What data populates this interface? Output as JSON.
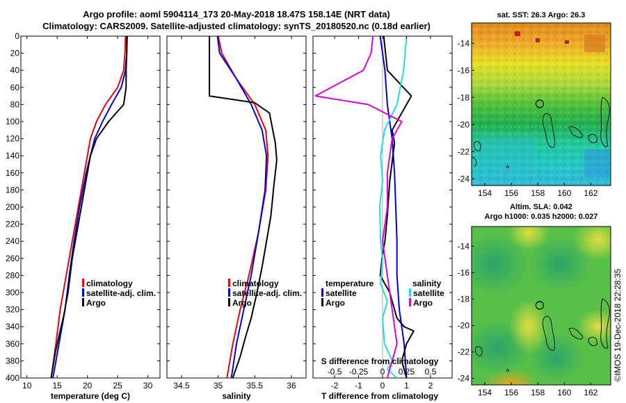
{
  "header": {
    "line1": "Argo profile: aoml 5904114_173 20-May-2018 18.47S 158.14E (NRT data)",
    "line2": "Climatology: CARS2009. Satellite-adjusted climatology: synTS_20180520.nc (0.18d earlier)"
  },
  "credit": "©IMOS 19-Dec-2018 22:28:35",
  "colors": {
    "climatology": "#ee0000",
    "satellite": "#0000dd",
    "argo": "#000000",
    "salinity_diff": "#dd00dd",
    "salinity_sat": "#22dddd"
  },
  "legends": {
    "profile": [
      "climatology",
      "satellite-adj. clim.",
      "Argo"
    ],
    "diff_temperature_title": "temperature",
    "diff_temperature": [
      "satellite",
      "Argo"
    ],
    "diff_salinity_title": "salinity",
    "diff_salinity": [
      "satellite",
      "Argo"
    ]
  },
  "chart_data": [
    {
      "type": "line",
      "id": "temperature",
      "xlabel": "temperature (deg C)",
      "ylabel": "",
      "xlim": [
        9,
        32
      ],
      "ylim": [
        400,
        0
      ],
      "xticks": [
        "10",
        "15",
        "20",
        "25",
        "30"
      ],
      "xtick_values": [
        10,
        15,
        20,
        25,
        30
      ],
      "yticks": [
        "0",
        "20",
        "40",
        "60",
        "80",
        "100",
        "120",
        "140",
        "160",
        "180",
        "200",
        "220",
        "240",
        "260",
        "280",
        "300",
        "320",
        "340",
        "360",
        "380",
        "400"
      ],
      "ytick_values": [
        0,
        20,
        40,
        60,
        80,
        100,
        120,
        140,
        160,
        180,
        200,
        220,
        240,
        260,
        280,
        300,
        320,
        340,
        360,
        380,
        400
      ],
      "series": [
        {
          "name": "climatology",
          "color": "#ee0000",
          "x": [
            26.3,
            26.2,
            26.0,
            25.0,
            23.0,
            21.5,
            20.5,
            19.5,
            18.5,
            17.5,
            16.5,
            15.5,
            14.8,
            14.0
          ],
          "y": [
            0,
            20,
            40,
            60,
            80,
            100,
            120,
            160,
            200,
            240,
            280,
            320,
            360,
            400
          ]
        },
        {
          "name": "satellite-adj. clim.",
          "color": "#0000dd",
          "x": [
            26.6,
            26.5,
            26.3,
            25.6,
            24.0,
            22.5,
            21.2,
            19.8,
            18.7,
            17.8,
            17.0,
            16.3,
            15.3,
            14.3
          ],
          "y": [
            0,
            20,
            40,
            60,
            80,
            100,
            120,
            160,
            200,
            240,
            280,
            320,
            360,
            400
          ]
        },
        {
          "name": "Argo",
          "color": "#000000",
          "x": [
            26.5,
            26.5,
            26.4,
            26.4,
            26.0,
            23.5,
            21.5,
            20.5,
            19.5,
            18.5,
            17.5,
            16.8,
            16.0,
            15.5,
            14.7,
            14.0
          ],
          "y": [
            0,
            20,
            40,
            60,
            80,
            100,
            120,
            140,
            180,
            220,
            260,
            300,
            330,
            345,
            370,
            400
          ]
        }
      ]
    },
    {
      "type": "line",
      "id": "salinity",
      "xlabel": "salinity",
      "ylabel": "",
      "xlim": [
        34.3,
        36.2
      ],
      "ylim": [
        400,
        0
      ],
      "xticks": [
        "34.5",
        "35",
        "35.5",
        "36"
      ],
      "xtick_values": [
        34.5,
        35,
        35.5,
        36
      ],
      "series": [
        {
          "name": "climatology",
          "color": "#ee0000",
          "x": [
            35.0,
            35.05,
            35.25,
            35.5,
            35.65,
            35.68,
            35.65,
            35.55,
            35.42,
            35.3,
            35.2,
            35.12
          ],
          "y": [
            0,
            20,
            50,
            80,
            110,
            140,
            180,
            230,
            280,
            320,
            360,
            400
          ]
        },
        {
          "name": "satellite-adj. clim.",
          "color": "#0000dd",
          "x": [
            34.99,
            35.02,
            35.25,
            35.45,
            35.6,
            35.66,
            35.64,
            35.55,
            35.45,
            35.35,
            35.25,
            35.18
          ],
          "y": [
            0,
            20,
            50,
            80,
            110,
            140,
            180,
            230,
            280,
            320,
            360,
            400
          ]
        },
        {
          "name": "Argo",
          "color": "#000000",
          "x": [
            34.88,
            34.88,
            34.88,
            35.5,
            35.7,
            35.78,
            35.8,
            35.76,
            35.72,
            35.66,
            35.6,
            35.53,
            35.45,
            35.38,
            35.3,
            35.2
          ],
          "y": [
            0,
            30,
            70,
            78,
            90,
            125,
            145,
            175,
            210,
            240,
            270,
            300,
            330,
            350,
            375,
            400
          ]
        }
      ]
    },
    {
      "type": "line",
      "id": "difference",
      "xlabel": "T difference from climatology",
      "x2label": "S difference from climatology",
      "xlim": [
        -2.9,
        2.9
      ],
      "ylim": [
        400,
        0
      ],
      "xticks": [
        "-2",
        "-1",
        "0",
        "1",
        "2"
      ],
      "xtick_values": [
        -2,
        -1,
        0,
        1,
        2
      ],
      "x2ticks": [
        "-0.5",
        "-0.25",
        "0",
        "0.25",
        "0.5"
      ],
      "x2tick_values": [
        -0.5,
        -0.25,
        0,
        0.25,
        0.5
      ],
      "series": [
        {
          "name": "T satellite",
          "color": "#0000dd",
          "axis": "T",
          "x": [
            -0.1,
            0.1,
            0.2,
            0.3,
            0.4,
            0.5,
            0.55,
            0.6,
            0.6,
            0.65,
            0.7,
            0.8,
            0.9,
            1.0
          ],
          "y": [
            0,
            40,
            80,
            100,
            120,
            160,
            200,
            240,
            280,
            300,
            320,
            340,
            360,
            400
          ]
        },
        {
          "name": "T Argo",
          "color": "#000000",
          "axis": "T",
          "x": [
            0.05,
            0.2,
            1.2,
            0.7,
            0.4,
            0.5,
            0.3,
            0.2,
            0.1,
            0.0,
            -0.1,
            0.3,
            0.6,
            0.9,
            1.3,
            1.0,
            0.8,
            1.0
          ],
          "y": [
            0,
            40,
            70,
            95,
            110,
            125,
            170,
            210,
            240,
            255,
            280,
            300,
            330,
            340,
            345,
            360,
            380,
            400
          ]
        },
        {
          "name": "S satellite",
          "color": "#22dddd",
          "axis": "S",
          "x": [
            0.25,
            0.22,
            0.15,
            0.02,
            -0.02,
            0.0,
            -0.03,
            -0.02,
            0.0,
            -0.02,
            0.05,
            0.0,
            0.02,
            0.1,
            0.05,
            0.15
          ],
          "y": [
            0,
            40,
            80,
            110,
            140,
            170,
            200,
            240,
            260,
            290,
            310,
            330,
            360,
            380,
            390,
            400
          ]
        },
        {
          "name": "S Argo",
          "color": "#dd00dd",
          "axis": "S",
          "x": [
            -0.1,
            -0.12,
            -0.2,
            -0.7,
            -0.15,
            0.2,
            0.1,
            0.05,
            0.05,
            0.0,
            0.05,
            0.1,
            0.15,
            0.1,
            0.05
          ],
          "y": [
            0,
            20,
            40,
            70,
            80,
            100,
            120,
            160,
            200,
            240,
            280,
            320,
            360,
            380,
            400
          ]
        }
      ]
    },
    {
      "type": "heatmap",
      "id": "sst_map",
      "title": "sat. SST: 26.3 Argo: 26.3",
      "xlim": [
        153,
        163.5
      ],
      "ylim": [
        -24.5,
        -12.5
      ],
      "xticks": [
        "154",
        "156",
        "158",
        "160",
        "162"
      ],
      "xtick_values": [
        154,
        156,
        158,
        160,
        162
      ],
      "yticks": [
        "-14",
        "-16",
        "-18",
        "-20",
        "-22",
        "-24"
      ],
      "ytick_values": [
        -14,
        -16,
        -18,
        -20,
        -22,
        -24
      ],
      "argo_position": {
        "lon": 158.14,
        "lat": -18.47
      }
    },
    {
      "type": "heatmap",
      "id": "sla_map",
      "title": "Altim. SLA: 0.042",
      "subtitle": "Argo h1000: 0.035 h2000: 0.027",
      "xlim": [
        153,
        163.5
      ],
      "ylim": [
        -24.5,
        -12.5
      ],
      "xticks": [
        "154",
        "156",
        "158",
        "160",
        "162"
      ],
      "xtick_values": [
        154,
        156,
        158,
        160,
        162
      ],
      "yticks": [
        "-14",
        "-16",
        "-18",
        "-20",
        "-22",
        "-24"
      ],
      "ytick_values": [
        -14,
        -16,
        -18,
        -20,
        -22,
        -24
      ],
      "argo_position": {
        "lon": 158.14,
        "lat": -18.47
      }
    }
  ]
}
